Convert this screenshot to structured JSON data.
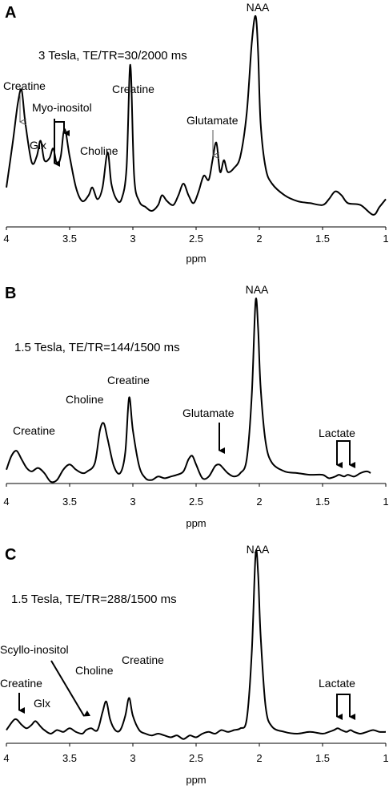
{
  "chart_data": [
    {
      "type": "line",
      "panel": "A",
      "condition": "3 Tesla, TE/TR=30/2000 ms",
      "xlabel": "ppm",
      "ylabel": "",
      "xlim": [
        4,
        1
      ],
      "x_ticks": [
        "4",
        "3.5",
        "3",
        "2.5",
        "2",
        "1.5",
        "1"
      ],
      "annotations": [
        "Creatine",
        "Glx",
        "Myo-inositol",
        "Choline",
        "Creatine",
        "Glutamate",
        "NAA"
      ],
      "series": [
        {
          "x": [
            4.0,
            3.95,
            3.91,
            3.88,
            3.85,
            3.8,
            3.76,
            3.73,
            3.7,
            3.66,
            3.63,
            3.6,
            3.57,
            3.54,
            3.5,
            3.45,
            3.4,
            3.35,
            3.32,
            3.28,
            3.24,
            3.2,
            3.17,
            3.13,
            3.09,
            3.05,
            3.02,
            2.99,
            2.95,
            2.9,
            2.85,
            2.8,
            2.77,
            2.73,
            2.68,
            2.64,
            2.6,
            2.56,
            2.52,
            2.48,
            2.44,
            2.4,
            2.37,
            2.34,
            2.31,
            2.28,
            2.25,
            2.2,
            2.15,
            2.1,
            2.06,
            2.03,
            2.01,
            1.99,
            1.95,
            1.9,
            1.8,
            1.7,
            1.6,
            1.5,
            1.45,
            1.4,
            1.35,
            1.3,
            1.2,
            1.1,
            1.05,
            1.0
          ],
          "y": [
            0.12,
            0.35,
            0.55,
            0.62,
            0.45,
            0.25,
            0.28,
            0.36,
            0.26,
            0.27,
            0.32,
            0.24,
            0.28,
            0.42,
            0.28,
            0.12,
            0.05,
            0.08,
            0.12,
            0.06,
            0.12,
            0.3,
            0.14,
            0.06,
            0.06,
            0.22,
            0.75,
            0.18,
            0.05,
            0.02,
            0.0,
            0.03,
            0.08,
            0.05,
            0.03,
            0.08,
            0.14,
            0.08,
            0.04,
            0.1,
            0.18,
            0.16,
            0.26,
            0.35,
            0.2,
            0.26,
            0.2,
            0.22,
            0.28,
            0.5,
            0.86,
            1.0,
            0.82,
            0.45,
            0.22,
            0.14,
            0.08,
            0.05,
            0.04,
            0.03,
            0.06,
            0.1,
            0.08,
            0.04,
            0.03,
            -0.02,
            0.02,
            0.06
          ]
        }
      ]
    },
    {
      "type": "line",
      "panel": "B",
      "condition": "1.5 Tesla, TE/TR=144/1500 ms",
      "xlabel": "ppm",
      "ylabel": "",
      "xlim": [
        4,
        1
      ],
      "x_ticks": [
        "4",
        "3.5",
        "3",
        "2.5",
        "2",
        "1.5",
        "1"
      ],
      "annotations": [
        "Creatine",
        "Choline",
        "Creatine",
        "Glutamate",
        "NAA",
        "Lactate"
      ],
      "series": [
        {
          "x": [
            4.0,
            3.96,
            3.92,
            3.88,
            3.84,
            3.8,
            3.75,
            3.7,
            3.65,
            3.6,
            3.55,
            3.5,
            3.45,
            3.4,
            3.36,
            3.3,
            3.26,
            3.23,
            3.2,
            3.15,
            3.1,
            3.06,
            3.03,
            3.0,
            2.95,
            2.9,
            2.85,
            2.8,
            2.75,
            2.7,
            2.65,
            2.6,
            2.56,
            2.53,
            2.5,
            2.45,
            2.4,
            2.35,
            2.32,
            2.3,
            2.25,
            2.2,
            2.15,
            2.1,
            2.06,
            2.03,
            2.01,
            1.99,
            1.95,
            1.9,
            1.8,
            1.7,
            1.6,
            1.5,
            1.45,
            1.4,
            1.37,
            1.33,
            1.3,
            1.25,
            1.2,
            1.15,
            1.12
          ],
          "y": [
            0.02,
            0.1,
            0.13,
            0.08,
            0.03,
            0.01,
            0.03,
            0.0,
            -0.05,
            -0.04,
            0.02,
            0.05,
            0.02,
            0.0,
            0.01,
            0.06,
            0.25,
            0.29,
            0.2,
            0.04,
            0.0,
            0.12,
            0.44,
            0.25,
            0.04,
            -0.03,
            -0.04,
            -0.02,
            -0.03,
            -0.02,
            -0.01,
            0.01,
            0.08,
            0.1,
            0.05,
            -0.03,
            -0.02,
            0.04,
            0.05,
            0.04,
            0.0,
            -0.02,
            0.0,
            0.08,
            0.45,
            1.0,
            0.85,
            0.5,
            0.18,
            0.06,
            0.01,
            0.0,
            -0.01,
            -0.01,
            -0.03,
            -0.02,
            -0.01,
            -0.02,
            -0.01,
            -0.02,
            0.0,
            0.01,
            0.0
          ]
        }
      ]
    },
    {
      "type": "line",
      "panel": "C",
      "condition": "1.5 Tesla, TE/TR=288/1500 ms",
      "xlabel": "ppm",
      "ylabel": "",
      "xlim": [
        4,
        1
      ],
      "x_ticks": [
        "4",
        "3.5",
        "3",
        "2.5",
        "2",
        "1.5",
        "1"
      ],
      "annotations": [
        "Creatine",
        "Glx",
        "Scyllo-inositol",
        "Choline",
        "Creatine",
        "NAA",
        "Lactate"
      ],
      "series": [
        {
          "x": [
            4.0,
            3.95,
            3.92,
            3.88,
            3.84,
            3.8,
            3.77,
            3.73,
            3.7,
            3.65,
            3.6,
            3.55,
            3.5,
            3.45,
            3.4,
            3.37,
            3.33,
            3.28,
            3.24,
            3.21,
            3.18,
            3.14,
            3.1,
            3.06,
            3.03,
            3.0,
            2.95,
            2.9,
            2.85,
            2.8,
            2.75,
            2.7,
            2.65,
            2.6,
            2.55,
            2.5,
            2.45,
            2.4,
            2.35,
            2.3,
            2.25,
            2.2,
            2.15,
            2.1,
            2.06,
            2.03,
            2.01,
            1.99,
            1.95,
            1.9,
            1.8,
            1.7,
            1.6,
            1.5,
            1.45,
            1.41,
            1.38,
            1.35,
            1.31,
            1.28,
            1.25,
            1.2,
            1.15,
            1.1,
            1.05,
            1.0
          ],
          "y": [
            0.02,
            0.07,
            0.08,
            0.05,
            0.03,
            0.05,
            0.07,
            0.04,
            0.02,
            0.0,
            0.02,
            0.01,
            0.03,
            0.01,
            0.0,
            0.02,
            0.03,
            0.02,
            0.12,
            0.18,
            0.08,
            0.02,
            0.02,
            0.1,
            0.2,
            0.1,
            0.02,
            0.0,
            -0.01,
            0.0,
            -0.01,
            -0.02,
            -0.01,
            -0.03,
            -0.01,
            -0.02,
            0.0,
            0.01,
            0.0,
            0.02,
            0.01,
            0.02,
            0.03,
            0.08,
            0.45,
            1.0,
            0.9,
            0.55,
            0.15,
            0.04,
            0.01,
            0.0,
            0.01,
            0.0,
            0.01,
            0.02,
            0.03,
            0.02,
            0.01,
            0.02,
            0.01,
            0.0,
            0.01,
            0.02,
            0.01,
            0.01
          ]
        }
      ]
    }
  ]
}
